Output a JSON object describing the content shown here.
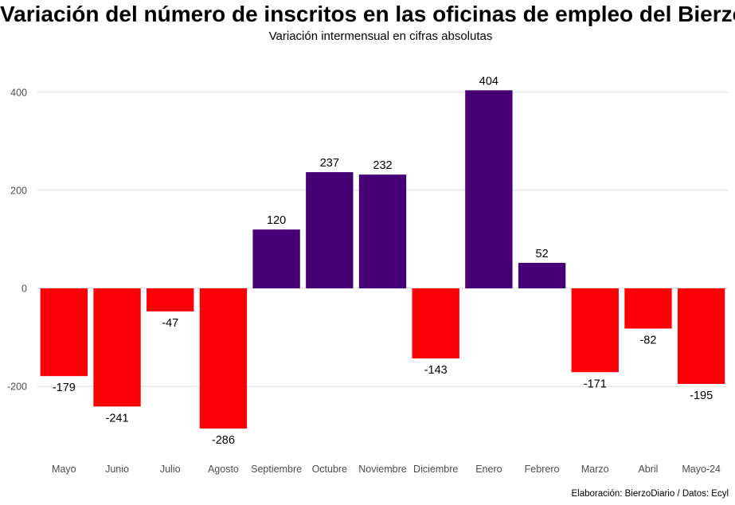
{
  "chart_data": {
    "type": "bar",
    "title": "Variación del número de inscritos en las oficinas de empleo del Bierzo",
    "subtitle": "Variación intermensual en cifras absolutas",
    "caption": "Elaboración: BierzoDiario / Datos: Ecyl",
    "xlabel": "",
    "ylabel": "",
    "categories": [
      "Mayo",
      "Junio",
      "Julio",
      "Agosto",
      "Septiembre",
      "Octubre",
      "Noviembre",
      "Diciembre",
      "Enero",
      "Febrero",
      "Marzo",
      "Abril",
      "Mayo-24"
    ],
    "values": [
      -179,
      -241,
      -47,
      -286,
      120,
      237,
      232,
      -143,
      404,
      52,
      -171,
      -82,
      -195
    ],
    "data_labels": [
      "-179",
      "-241",
      "-47",
      "-286",
      "120",
      "237",
      "232",
      "-143",
      "404",
      "52",
      "-171",
      "-82",
      "-195"
    ],
    "y_ticks": [
      -200,
      0,
      200,
      400
    ],
    "y_tick_labels": [
      "-200",
      "0",
      "200",
      "400"
    ],
    "ylim": [
      -330,
      440
    ],
    "grid": true,
    "legend": "none",
    "colors": {
      "positive": "#460075",
      "negative": "#fb0007",
      "grid": "#dcdcdc",
      "tick_text": "#4d4d4d"
    }
  }
}
